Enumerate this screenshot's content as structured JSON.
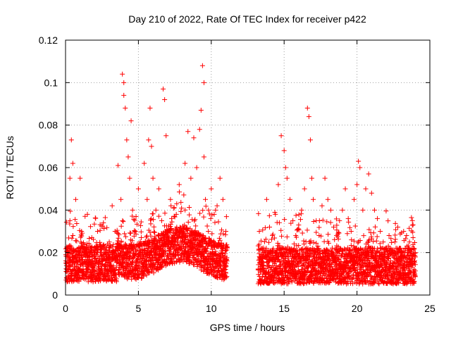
{
  "chart_data": {
    "type": "scatter",
    "title": "Day 210 of 2022, Rate Of TEC Index for receiver p422",
    "xlabel": "GPS time / hours",
    "ylabel": "ROTI / TECUs",
    "xlim": [
      0,
      25
    ],
    "ylim": [
      0,
      0.12
    ],
    "xticks": [
      0,
      5,
      10,
      15,
      20,
      25
    ],
    "yticks": [
      0,
      0.02,
      0.04,
      0.06,
      0.08,
      0.1,
      0.12
    ],
    "ytick_labels": [
      "0",
      "0.02",
      "0.04",
      "0.06",
      "0.08",
      "0.1",
      "0.12"
    ],
    "grid": true,
    "marker": "+",
    "marker_color": "#ff0000",
    "data_gap_hours": [
      11.1,
      13.2
    ],
    "series": [
      {
        "points": [
          [
            0.1,
            0.012
          ],
          [
            0.2,
            0.018
          ],
          [
            0.3,
            0.035
          ],
          [
            0.3,
            0.055
          ],
          [
            0.4,
            0.073
          ],
          [
            0.5,
            0.062
          ],
          [
            0.5,
            0.028
          ],
          [
            0.6,
            0.015
          ],
          [
            0.7,
            0.045
          ],
          [
            0.8,
            0.01
          ],
          [
            0.9,
            0.022
          ],
          [
            1.0,
            0.055
          ],
          [
            1.1,
            0.03
          ],
          [
            1.2,
            0.012
          ],
          [
            1.3,
            0.02
          ],
          [
            1.5,
            0.038
          ],
          [
            1.6,
            0.018
          ],
          [
            1.8,
            0.027
          ],
          [
            2.0,
            0.014
          ],
          [
            2.2,
            0.03
          ],
          [
            2.4,
            0.02
          ],
          [
            2.6,
            0.034
          ],
          [
            2.8,
            0.016
          ],
          [
            3.0,
            0.025
          ],
          [
            3.2,
            0.042
          ],
          [
            3.4,
            0.03
          ],
          [
            3.6,
            0.061
          ],
          [
            3.8,
            0.045
          ],
          [
            3.9,
            0.104
          ],
          [
            4.0,
            0.1
          ],
          [
            4.0,
            0.094
          ],
          [
            4.1,
            0.088
          ],
          [
            4.2,
            0.073
          ],
          [
            4.3,
            0.065
          ],
          [
            4.4,
            0.055
          ],
          [
            4.5,
            0.082
          ],
          [
            4.6,
            0.04
          ],
          [
            4.8,
            0.03
          ],
          [
            5.0,
            0.05
          ],
          [
            5.2,
            0.027
          ],
          [
            5.4,
            0.062
          ],
          [
            5.6,
            0.045
          ],
          [
            5.7,
            0.073
          ],
          [
            5.8,
            0.088
          ],
          [
            5.9,
            0.07
          ],
          [
            6.0,
            0.055
          ],
          [
            6.2,
            0.04
          ],
          [
            6.4,
            0.05
          ],
          [
            6.6,
            0.035
          ],
          [
            6.7,
            0.097
          ],
          [
            6.8,
            0.092
          ],
          [
            6.9,
            0.075
          ],
          [
            7.0,
            0.03
          ],
          [
            7.2,
            0.045
          ],
          [
            7.4,
            0.025
          ],
          [
            7.6,
            0.038
          ],
          [
            7.8,
            0.052
          ],
          [
            8.0,
            0.03
          ],
          [
            8.2,
            0.062
          ],
          [
            8.4,
            0.077
          ],
          [
            8.6,
            0.055
          ],
          [
            8.8,
            0.074
          ],
          [
            9.0,
            0.06
          ],
          [
            9.2,
            0.078
          ],
          [
            9.3,
            0.087
          ],
          [
            9.4,
            0.108
          ],
          [
            9.5,
            0.1
          ],
          [
            9.5,
            0.065
          ],
          [
            9.6,
            0.045
          ],
          [
            9.8,
            0.03
          ],
          [
            10.0,
            0.05
          ],
          [
            10.2,
            0.038
          ],
          [
            10.4,
            0.042
          ],
          [
            10.6,
            0.055
          ],
          [
            10.8,
            0.045
          ],
          [
            11.0,
            0.03
          ],
          [
            13.3,
            0.03
          ],
          [
            13.5,
            0.022
          ],
          [
            13.8,
            0.045
          ],
          [
            14.0,
            0.032
          ],
          [
            14.2,
            0.028
          ],
          [
            14.4,
            0.038
          ],
          [
            14.6,
            0.052
          ],
          [
            14.8,
            0.075
          ],
          [
            15.0,
            0.068
          ],
          [
            15.1,
            0.06
          ],
          [
            15.2,
            0.055
          ],
          [
            15.4,
            0.045
          ],
          [
            15.6,
            0.035
          ],
          [
            15.8,
            0.028
          ],
          [
            16.0,
            0.033
          ],
          [
            16.2,
            0.04
          ],
          [
            16.4,
            0.05
          ],
          [
            16.6,
            0.088
          ],
          [
            16.7,
            0.084
          ],
          [
            16.8,
            0.073
          ],
          [
            16.9,
            0.055
          ],
          [
            17.0,
            0.045
          ],
          [
            17.2,
            0.035
          ],
          [
            17.4,
            0.028
          ],
          [
            17.6,
            0.042
          ],
          [
            17.8,
            0.055
          ],
          [
            18.0,
            0.045
          ],
          [
            18.2,
            0.04
          ],
          [
            18.4,
            0.032
          ],
          [
            18.6,
            0.028
          ],
          [
            18.8,
            0.035
          ],
          [
            19.0,
            0.04
          ],
          [
            19.2,
            0.05
          ],
          [
            19.4,
            0.036
          ],
          [
            19.6,
            0.03
          ],
          [
            19.8,
            0.045
          ],
          [
            20.0,
            0.052
          ],
          [
            20.1,
            0.063
          ],
          [
            20.2,
            0.06
          ],
          [
            20.4,
            0.04
          ],
          [
            20.6,
            0.05
          ],
          [
            20.8,
            0.057
          ],
          [
            21.0,
            0.048
          ],
          [
            21.2,
            0.04
          ],
          [
            21.4,
            0.036
          ],
          [
            21.6,
            0.03
          ],
          [
            21.8,
            0.025
          ],
          [
            22.0,
            0.022
          ],
          [
            22.2,
            0.028
          ],
          [
            22.4,
            0.02
          ],
          [
            22.6,
            0.025
          ],
          [
            22.8,
            0.032
          ],
          [
            23.0,
            0.022
          ],
          [
            23.2,
            0.03
          ],
          [
            23.4,
            0.028
          ],
          [
            23.6,
            0.025
          ],
          [
            23.8,
            0.035
          ],
          [
            24.0,
            0.02
          ]
        ]
      }
    ]
  }
}
